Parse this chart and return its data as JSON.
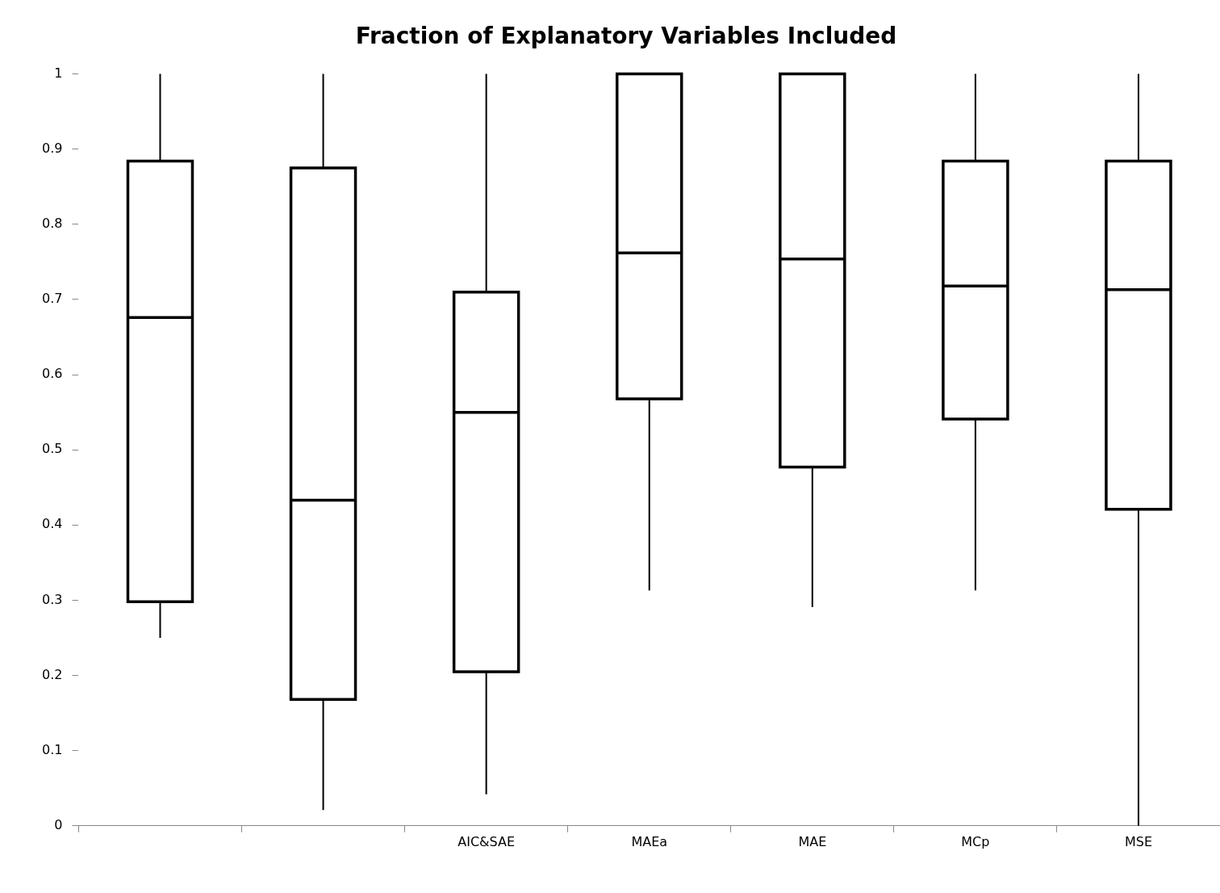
{
  "chart_data": {
    "type": "box",
    "title": "Fraction of Explanatory Variables Included",
    "categories": [
      null,
      null,
      "AIC&SAE",
      "MAEa",
      "MAE",
      "MCp",
      "MSE"
    ],
    "boxes": [
      {
        "low": 0.25,
        "q1": 0.298,
        "median": 0.676,
        "q3": 0.884,
        "high": 1
      },
      {
        "low": 0.021,
        "q1": 0.168,
        "median": 0.433,
        "q3": 0.875,
        "high": 1
      },
      {
        "low": 0.042,
        "q1": 0.205,
        "median": 0.55,
        "q3": 0.71,
        "high": 1
      },
      {
        "low": 0.313,
        "q1": 0.568,
        "median": 0.762,
        "q3": 1,
        "high": 1
      },
      {
        "low": 0.291,
        "q1": 0.477,
        "median": 0.754,
        "q3": 1,
        "high": 1
      },
      {
        "low": 0.313,
        "q1": 0.541,
        "median": 0.718,
        "q3": 0.884,
        "high": 1
      },
      {
        "low": 0,
        "q1": 0.421,
        "median": 0.713,
        "q3": 0.884,
        "high": 1
      }
    ],
    "ylim": [
      0,
      1
    ],
    "yticks": [
      0,
      0.1,
      0.2,
      0.3,
      0.4,
      0.5,
      0.6,
      0.7,
      0.8,
      0.9,
      1
    ]
  }
}
